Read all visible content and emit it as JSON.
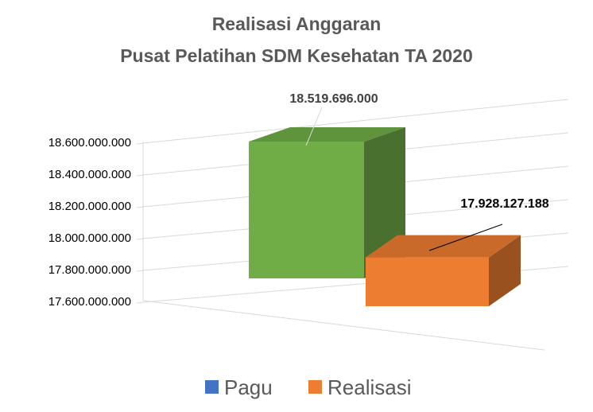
{
  "chart_data": {
    "type": "bar3d",
    "title": [
      "Realisasi Anggaran",
      "Pusat Pelatihan SDM Kesehatan TA 2020"
    ],
    "categories": [
      null
    ],
    "series": [
      {
        "name": "Pagu",
        "color": "#4472c4",
        "bar_color": "#70ad47",
        "values": [
          18519696000
        ],
        "value_labels": [
          "18.519.696.000"
        ]
      },
      {
        "name": "Realisasi",
        "color": "#ed7d31",
        "bar_color": "#ed7d31",
        "values": [
          17928127188
        ],
        "value_labels": [
          "17.928.127.188"
        ]
      }
    ],
    "ylim": [
      17600000000,
      18600000000
    ],
    "yticks": [
      {
        "value": 17600000000,
        "label": "17.600.000.000"
      },
      {
        "value": 17800000000,
        "label": "17.800.000.000"
      },
      {
        "value": 18000000000,
        "label": "18.000.000.000"
      },
      {
        "value": 18200000000,
        "label": "18.200.000.000"
      },
      {
        "value": 18400000000,
        "label": "18.400.000.000"
      },
      {
        "value": 18600000000,
        "label": "18.600.000.000"
      }
    ],
    "grid": true,
    "legend": "bottom"
  }
}
